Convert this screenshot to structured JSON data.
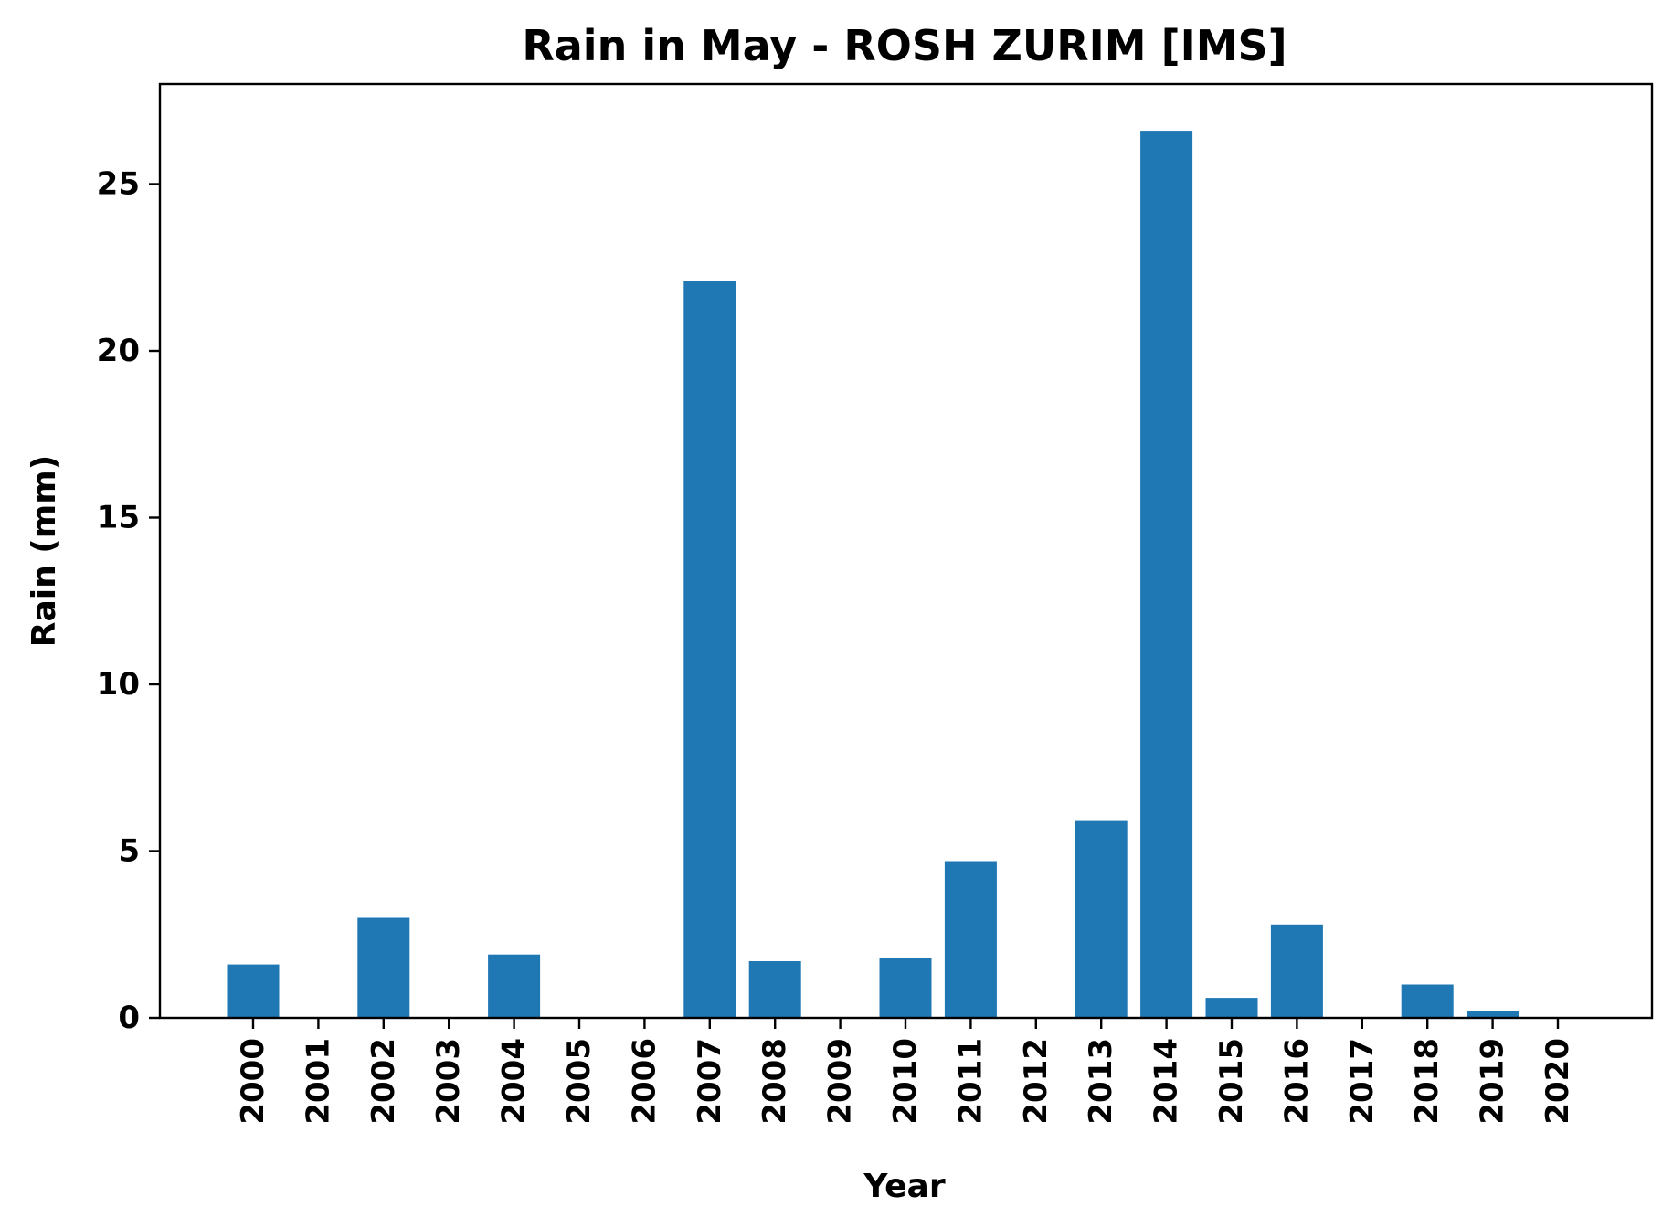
{
  "chart_data": {
    "type": "bar",
    "title": "Rain in May - ROSH ZURIM [IMS]",
    "xlabel": "Year",
    "ylabel": "Rain (mm)",
    "categories": [
      "2000",
      "2001",
      "2002",
      "2003",
      "2004",
      "2005",
      "2006",
      "2007",
      "2008",
      "2009",
      "2010",
      "2011",
      "2012",
      "2013",
      "2014",
      "2015",
      "2016",
      "2017",
      "2018",
      "2019",
      "2020"
    ],
    "values": [
      1.6,
      0,
      3.0,
      0,
      1.9,
      0,
      0,
      22.1,
      1.7,
      0,
      1.8,
      4.7,
      0,
      5.9,
      26.6,
      0.6,
      2.8,
      0,
      1.0,
      0.2,
      0
    ],
    "ylim": [
      0,
      28
    ],
    "yticks": [
      0,
      5,
      10,
      15,
      20,
      25
    ],
    "bar_color": "#1f77b4",
    "grid": false,
    "legend": null
  }
}
